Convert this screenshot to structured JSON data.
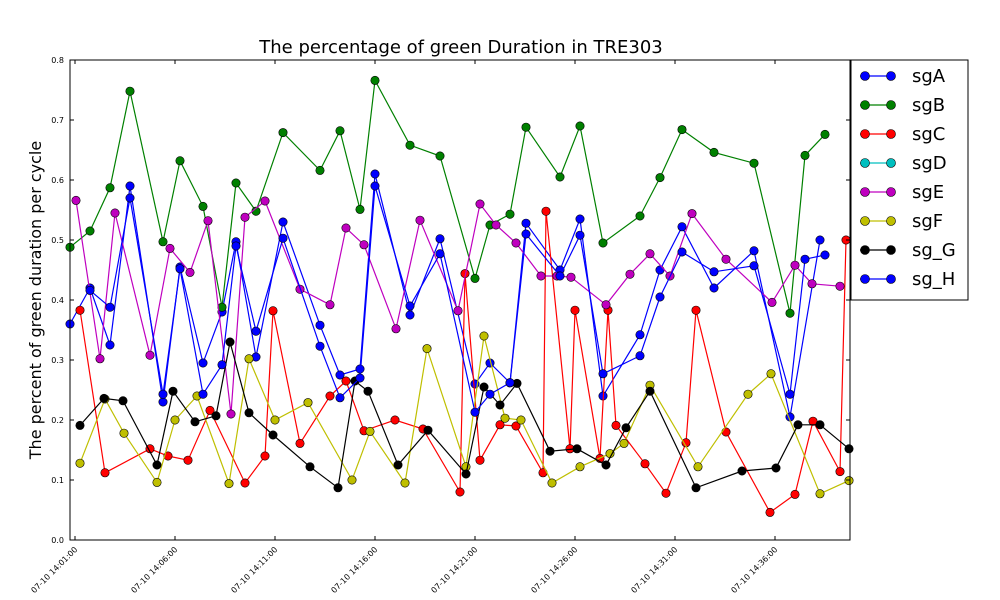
{
  "chart_data": {
    "type": "line",
    "title": "The percentage of green Duration in TRE303",
    "xlabel": "",
    "ylabel": "The percent of green duration per cycle",
    "xlim": [
      0,
      78
    ],
    "ylim": [
      0.0,
      0.8
    ],
    "yticks": [
      "0.0",
      "0.1",
      "0.2",
      "0.3",
      "0.4",
      "0.5",
      "0.6",
      "0.7",
      "0.8"
    ],
    "xticks": [
      {
        "x": 0.5,
        "label": "07-10 14:01:00"
      },
      {
        "x": 10.5,
        "label": "07-10 14:06:00"
      },
      {
        "x": 20.5,
        "label": "07-10 14:11:00"
      },
      {
        "x": 30.5,
        "label": "07-10 14:16:00"
      },
      {
        "x": 40.5,
        "label": "07-10 14:21:00"
      },
      {
        "x": 50.5,
        "label": "07-10 14:26:00"
      },
      {
        "x": 60.5,
        "label": "07-10 14:31:00"
      },
      {
        "x": 70.5,
        "label": "07-10 14:36:00"
      }
    ],
    "grid": false,
    "legend_position": "upper-right-outside",
    "series": [
      {
        "name": "sgA",
        "color": "#0000ff",
        "points": [
          [
            0,
            0.36
          ],
          [
            2,
            0.42
          ],
          [
            4,
            0.325
          ],
          [
            6,
            0.59
          ],
          [
            9.3,
            0.23
          ],
          [
            11,
            0.455
          ],
          [
            13.3,
            0.295
          ],
          [
            15.2,
            0.38
          ],
          [
            16.6,
            0.497
          ],
          [
            18.6,
            0.305
          ],
          [
            21.3,
            0.53
          ],
          [
            25,
            0.358
          ],
          [
            27,
            0.275
          ],
          [
            29,
            0.285
          ],
          [
            30.5,
            0.61
          ],
          [
            34,
            0.375
          ],
          [
            37,
            0.502
          ],
          [
            40.5,
            0.26
          ],
          [
            42,
            0.295
          ],
          [
            44,
            0.262
          ],
          [
            45.6,
            0.528
          ],
          [
            49,
            0.45
          ],
          [
            51,
            0.535
          ],
          [
            53.3,
            0.24
          ],
          [
            57,
            0.342
          ],
          [
            59,
            0.45
          ],
          [
            61.2,
            0.522
          ],
          [
            64.4,
            0.42
          ],
          [
            68.4,
            0.482
          ],
          [
            72,
            0.205
          ],
          [
            75,
            0.5
          ]
        ]
      },
      {
        "name": "sgB",
        "color": "#008000",
        "points": [
          [
            0,
            0.488
          ],
          [
            2,
            0.515
          ],
          [
            4,
            0.587
          ],
          [
            6,
            0.748
          ],
          [
            9.3,
            0.497
          ],
          [
            11,
            0.632
          ],
          [
            13.3,
            0.556
          ],
          [
            15.2,
            0.388
          ],
          [
            16.6,
            0.595
          ],
          [
            18.6,
            0.548
          ],
          [
            21.3,
            0.679
          ],
          [
            25,
            0.616
          ],
          [
            27,
            0.682
          ],
          [
            29,
            0.551
          ],
          [
            30.5,
            0.766
          ],
          [
            34,
            0.658
          ],
          [
            37,
            0.64
          ],
          [
            40.5,
            0.436
          ],
          [
            42,
            0.525
          ],
          [
            44,
            0.543
          ],
          [
            45.6,
            0.688
          ],
          [
            49,
            0.605
          ],
          [
            51,
            0.69
          ],
          [
            53.3,
            0.495
          ],
          [
            57,
            0.54
          ],
          [
            59,
            0.604
          ],
          [
            61.2,
            0.684
          ],
          [
            64.4,
            0.646
          ],
          [
            68.4,
            0.628
          ],
          [
            72,
            0.378
          ],
          [
            73.5,
            0.641
          ],
          [
            75.5,
            0.676
          ]
        ]
      },
      {
        "name": "sgC",
        "color": "#ff0000",
        "points": [
          [
            1,
            0.383
          ],
          [
            3.5,
            0.112
          ],
          [
            8,
            0.152
          ],
          [
            9.8,
            0.14
          ],
          [
            11.8,
            0.133
          ],
          [
            14,
            0.216
          ],
          [
            17.5,
            0.095
          ],
          [
            19.5,
            0.14
          ],
          [
            20.3,
            0.382
          ],
          [
            23,
            0.161
          ],
          [
            26,
            0.24
          ],
          [
            27.6,
            0.265
          ],
          [
            29.4,
            0.182
          ],
          [
            32.5,
            0.2
          ],
          [
            35.3,
            0.185
          ],
          [
            39,
            0.08
          ],
          [
            39.5,
            0.444
          ],
          [
            41,
            0.133
          ],
          [
            43,
            0.192
          ],
          [
            44.6,
            0.19
          ],
          [
            47.3,
            0.112
          ],
          [
            47.6,
            0.548
          ],
          [
            50,
            0.152
          ],
          [
            50.5,
            0.383
          ],
          [
            53,
            0.136
          ],
          [
            53.8,
            0.383
          ],
          [
            54.6,
            0.191
          ],
          [
            57.5,
            0.127
          ],
          [
            59.6,
            0.078
          ],
          [
            61.6,
            0.162
          ],
          [
            62.6,
            0.383
          ],
          [
            65.6,
            0.18
          ],
          [
            70,
            0.046
          ],
          [
            72.5,
            0.076
          ],
          [
            74.3,
            0.198
          ],
          [
            77,
            0.114
          ],
          [
            77.6,
            0.5
          ]
        ]
      },
      {
        "name": "sgD",
        "color": "#00bfbf",
        "points": []
      },
      {
        "name": "sgE",
        "color": "#bf00bf",
        "points": [
          [
            0.6,
            0.566
          ],
          [
            3,
            0.302
          ],
          [
            4.5,
            0.545
          ],
          [
            8,
            0.308
          ],
          [
            10,
            0.486
          ],
          [
            12,
            0.446
          ],
          [
            13.8,
            0.532
          ],
          [
            16.1,
            0.21
          ],
          [
            17.5,
            0.538
          ],
          [
            19.5,
            0.565
          ],
          [
            23,
            0.418
          ],
          [
            26,
            0.392
          ],
          [
            27.6,
            0.52
          ],
          [
            29.4,
            0.492
          ],
          [
            32.6,
            0.352
          ],
          [
            35,
            0.533
          ],
          [
            38.8,
            0.382
          ],
          [
            41,
            0.56
          ],
          [
            42.6,
            0.525
          ],
          [
            44.6,
            0.495
          ],
          [
            47.1,
            0.44
          ],
          [
            48.7,
            0.44
          ],
          [
            50.1,
            0.438
          ],
          [
            53.6,
            0.392
          ],
          [
            56,
            0.443
          ],
          [
            58,
            0.477
          ],
          [
            60,
            0.44
          ],
          [
            62.2,
            0.544
          ],
          [
            65.6,
            0.468
          ],
          [
            70.2,
            0.396
          ],
          [
            72.5,
            0.458
          ],
          [
            74.2,
            0.427
          ],
          [
            77,
            0.423
          ]
        ]
      },
      {
        "name": "sgF",
        "color": "#bfbf00",
        "points": [
          [
            1,
            0.128
          ],
          [
            3.5,
            0.235
          ],
          [
            5.4,
            0.178
          ],
          [
            8.7,
            0.096
          ],
          [
            10.5,
            0.2
          ],
          [
            12.7,
            0.24
          ],
          [
            15.9,
            0.094
          ],
          [
            17.9,
            0.302
          ],
          [
            20.5,
            0.2
          ],
          [
            23.8,
            0.229
          ],
          [
            28.2,
            0.1
          ],
          [
            30,
            0.181
          ],
          [
            33.5,
            0.095
          ],
          [
            35.7,
            0.319
          ],
          [
            39.6,
            0.122
          ],
          [
            41.4,
            0.34
          ],
          [
            43.5,
            0.203
          ],
          [
            45.1,
            0.2
          ],
          [
            48.2,
            0.095
          ],
          [
            51,
            0.122
          ],
          [
            54,
            0.144
          ],
          [
            55.4,
            0.161
          ],
          [
            58,
            0.258
          ],
          [
            62.8,
            0.122
          ],
          [
            67.8,
            0.243
          ],
          [
            70.1,
            0.277
          ],
          [
            75,
            0.077
          ],
          [
            77.9,
            0.099
          ]
        ]
      },
      {
        "name": "sg_G",
        "color": "#000000",
        "points": [
          [
            1,
            0.191
          ],
          [
            3.4,
            0.236
          ],
          [
            5.3,
            0.232
          ],
          [
            8.7,
            0.125
          ],
          [
            10.3,
            0.248
          ],
          [
            12.5,
            0.197
          ],
          [
            14.6,
            0.207
          ],
          [
            16,
            0.33
          ],
          [
            17.9,
            0.212
          ],
          [
            20.3,
            0.175
          ],
          [
            24,
            0.122
          ],
          [
            26.8,
            0.087
          ],
          [
            28.5,
            0.265
          ],
          [
            29.8,
            0.248
          ],
          [
            32.8,
            0.125
          ],
          [
            35.8,
            0.183
          ],
          [
            39.6,
            0.11
          ],
          [
            41.4,
            0.255
          ],
          [
            43,
            0.225
          ],
          [
            44.7,
            0.261
          ],
          [
            48,
            0.148
          ],
          [
            50.7,
            0.152
          ],
          [
            53.6,
            0.125
          ],
          [
            55.6,
            0.187
          ],
          [
            58,
            0.248
          ],
          [
            62.6,
            0.087
          ],
          [
            67.2,
            0.115
          ],
          [
            70.6,
            0.12
          ],
          [
            72.8,
            0.192
          ],
          [
            75,
            0.192
          ],
          [
            77.9,
            0.152
          ]
        ]
      },
      {
        "name": "sg_H",
        "color": "#0000ff",
        "points": [
          [
            2,
            0.416
          ],
          [
            4,
            0.388
          ],
          [
            6,
            0.57
          ],
          [
            9.3,
            0.243
          ],
          [
            11,
            0.452
          ],
          [
            13.3,
            0.243
          ],
          [
            15.2,
            0.292
          ],
          [
            16.6,
            0.49
          ],
          [
            18.6,
            0.348
          ],
          [
            21.3,
            0.503
          ],
          [
            25,
            0.323
          ],
          [
            27,
            0.237
          ],
          [
            29,
            0.27
          ],
          [
            30.5,
            0.59
          ],
          [
            34,
            0.39
          ],
          [
            37,
            0.477
          ],
          [
            40.5,
            0.213
          ],
          [
            42,
            0.243
          ],
          [
            44,
            0.262
          ],
          [
            45.6,
            0.51
          ],
          [
            49,
            0.44
          ],
          [
            51,
            0.508
          ],
          [
            53.3,
            0.277
          ],
          [
            57,
            0.307
          ],
          [
            59,
            0.405
          ],
          [
            61.2,
            0.48
          ],
          [
            64.4,
            0.447
          ],
          [
            68.4,
            0.457
          ],
          [
            72,
            0.243
          ],
          [
            73.5,
            0.468
          ],
          [
            75.5,
            0.475
          ]
        ]
      }
    ]
  }
}
